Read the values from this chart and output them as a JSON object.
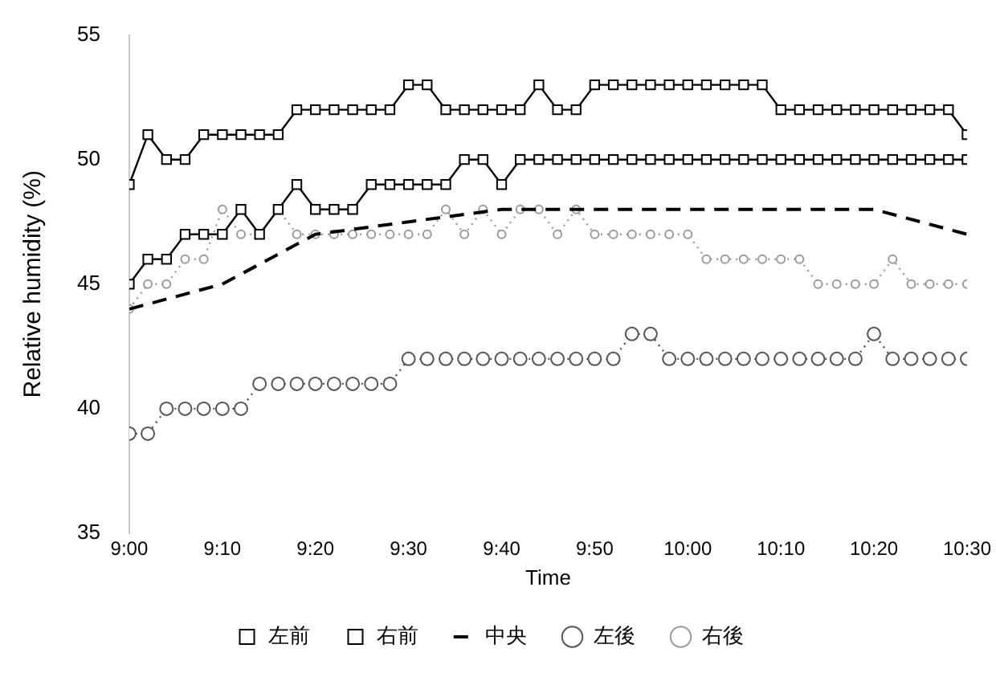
{
  "chart_data": {
    "type": "line",
    "xlabel": "Time",
    "ylabel": "Relative humidity (%)",
    "x": [
      9,
      9.0333,
      9.0667,
      9.1,
      9.1333,
      9.1667,
      9.2,
      9.2333,
      9.2667,
      9.3,
      9.3333,
      9.3667,
      9.4,
      9.4333,
      9.4667,
      9.5,
      9.5333,
      9.5667,
      9.6,
      9.6333,
      9.6667,
      9.7,
      9.7333,
      9.7667,
      9.8,
      9.8333,
      9.8667,
      9.9,
      9.9333,
      9.9667,
      10,
      10.0333,
      10.0667,
      10.1,
      10.1333,
      10.1667,
      10.2,
      10.2333,
      10.2667,
      10.3,
      10.3333,
      10.3667,
      10.4,
      10.4333,
      10.4667,
      10.5
    ],
    "series": [
      {
        "name": "左前",
        "color": "#000000",
        "marker": "square",
        "line_style": "solid",
        "values": [
          45,
          46,
          46,
          47,
          47,
          47,
          48,
          47,
          48,
          49,
          48,
          48,
          48,
          49,
          49,
          49,
          49,
          49,
          50,
          50,
          49,
          50,
          50,
          50,
          50,
          50,
          50,
          50,
          50,
          50,
          50,
          50,
          50,
          50,
          50,
          50,
          50,
          50,
          50,
          50,
          50,
          50,
          50,
          50,
          50,
          50
        ]
      },
      {
        "name": "右前",
        "color": "#000000",
        "marker": "square",
        "line_style": "solid",
        "values": [
          49,
          51,
          50,
          50,
          51,
          51,
          51,
          51,
          51,
          52,
          52,
          52,
          52,
          52,
          52,
          53,
          53,
          52,
          52,
          52,
          52,
          52,
          53,
          52,
          52,
          53,
          53,
          53,
          53,
          53,
          53,
          53,
          53,
          53,
          53,
          52,
          52,
          52,
          52,
          52,
          52,
          52,
          52,
          52,
          52,
          51
        ]
      },
      {
        "name": "中央",
        "color": "#000000",
        "marker": "none",
        "line_style": "dashed",
        "x": [
          9,
          9.1667,
          9.3333,
          9.5,
          9.6667,
          9.8333,
          10,
          10.1667,
          10.3333,
          10.5
        ],
        "values": [
          44,
          45,
          47,
          47.5,
          48,
          48,
          48,
          48,
          48,
          47
        ]
      },
      {
        "name": "左後",
        "color": "#555555",
        "marker": "circle",
        "line_style": "dotted",
        "values": [
          39,
          39,
          40,
          40,
          40,
          40,
          40,
          41,
          41,
          41,
          41,
          41,
          41,
          41,
          41,
          42,
          42,
          42,
          42,
          42,
          42,
          42,
          42,
          42,
          42,
          42,
          42,
          43,
          43,
          42,
          42,
          42,
          42,
          42,
          42,
          42,
          42,
          42,
          42,
          42,
          43,
          42,
          42,
          42,
          42,
          42
        ]
      },
      {
        "name": "右後",
        "color": "#9a9a9a",
        "marker": "circle",
        "line_style": "dotted",
        "values": [
          44,
          45,
          45,
          46,
          46,
          48,
          47,
          47,
          48,
          47,
          47,
          47,
          47,
          47,
          47,
          47,
          47,
          48,
          47,
          48,
          47,
          48,
          48,
          47,
          48,
          47,
          47,
          47,
          47,
          47,
          47,
          46,
          46,
          46,
          46,
          46,
          46,
          45,
          45,
          45,
          45,
          46,
          45,
          45,
          45,
          45
        ]
      }
    ],
    "xlim": [
      9,
      10.5
    ],
    "xticks": [
      {
        "value": 9,
        "label": "9:00"
      },
      {
        "value": 9.1667,
        "label": "9:10"
      },
      {
        "value": 9.3333,
        "label": "9:20"
      },
      {
        "value": 9.5,
        "label": "9:30"
      },
      {
        "value": 9.6667,
        "label": "9:40"
      },
      {
        "value": 9.8333,
        "label": "9:50"
      },
      {
        "value": 10,
        "label": "10:00"
      },
      {
        "value": 10.1667,
        "label": "10:10"
      },
      {
        "value": 10.3333,
        "label": "10:20"
      },
      {
        "value": 10.5,
        "label": "10:30"
      }
    ],
    "ylim": [
      35,
      55
    ],
    "yticks": [
      35,
      40,
      45,
      50,
      55
    ],
    "grid": false,
    "legend": "bottom"
  }
}
